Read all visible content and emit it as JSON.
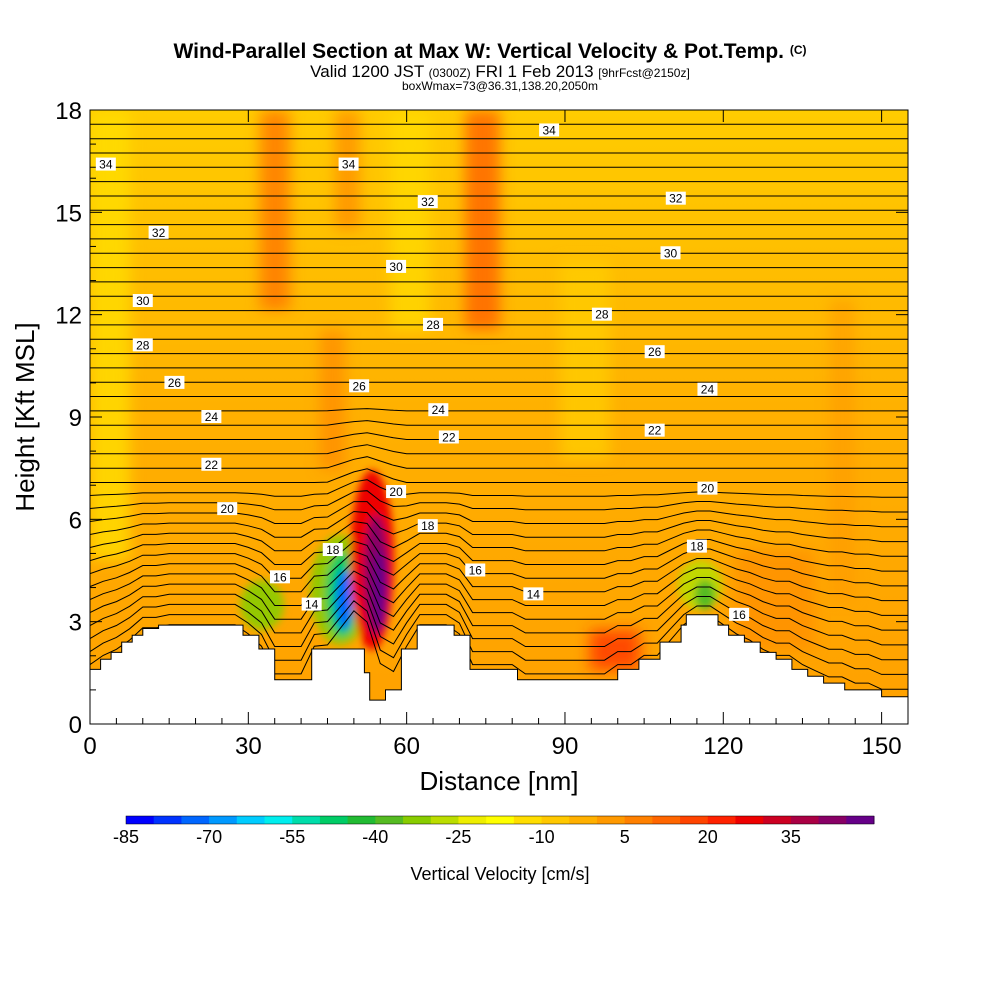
{
  "chart_data": {
    "type": "heatmap",
    "title": "Wind-Parallel Section at Max W: Vertical Velocity & Pot.Temp.",
    "title_mark": "(C)",
    "subtitle_valid": "Valid 1200 JST",
    "subtitle_utc": "(0300Z)",
    "subtitle_date": "FRI 1 Feb 2013",
    "subtitle_fcst": "[9hrFcst@2150z]",
    "subtitle_box": "boxWmax=73@36.31,138.20,2050m",
    "xlabel": "Distance [nm]",
    "ylabel": "Height [Kft MSL]",
    "xlim": [
      0,
      155
    ],
    "ylim": [
      0,
      18
    ],
    "xticks": [
      "0",
      "30",
      "60",
      "90",
      "120",
      "150"
    ],
    "yticks": [
      "0",
      "3",
      "6",
      "9",
      "12",
      "15",
      "18"
    ],
    "colorbar_label": "Vertical Velocity [cm/s]",
    "colorbar_ticks": [
      "-85",
      "-70",
      "-55",
      "-40",
      "-25",
      "-10",
      "5",
      "20",
      "35"
    ],
    "colorbar_colors": [
      "#0000ff",
      "#0033ff",
      "#0066ff",
      "#0099ff",
      "#00ccff",
      "#00eeee",
      "#00ddaa",
      "#00cc66",
      "#22bb33",
      "#55bb22",
      "#88cc00",
      "#bbdd00",
      "#eeee00",
      "#ffff00",
      "#ffdd00",
      "#ffc800",
      "#ffb000",
      "#ff9900",
      "#ff8000",
      "#ff6600",
      "#ff4400",
      "#ff2200",
      "#ee0000",
      "#cc0022",
      "#aa0044",
      "#880066",
      "#660088"
    ],
    "terrain_heights_kft": [
      [
        0,
        1.6
      ],
      [
        2,
        1.6
      ],
      [
        2,
        1.9
      ],
      [
        4,
        1.9
      ],
      [
        4,
        2.1
      ],
      [
        6,
        2.1
      ],
      [
        6,
        2.4
      ],
      [
        8,
        2.4
      ],
      [
        8,
        2.6
      ],
      [
        10,
        2.6
      ],
      [
        10,
        2.8
      ],
      [
        13,
        2.8
      ],
      [
        13,
        2.9
      ],
      [
        29,
        2.9
      ],
      [
        29,
        2.6
      ],
      [
        32,
        2.6
      ],
      [
        32,
        2.2
      ],
      [
        35,
        2.2
      ],
      [
        35,
        1.3
      ],
      [
        42,
        1.3
      ],
      [
        42,
        2.2
      ],
      [
        52,
        2.2
      ],
      [
        52,
        1.5
      ],
      [
        53,
        1.5
      ],
      [
        53,
        0.7
      ],
      [
        56,
        0.7
      ],
      [
        56,
        1.0
      ],
      [
        59,
        1.0
      ],
      [
        59,
        2.2
      ],
      [
        62,
        2.2
      ],
      [
        62,
        2.9
      ],
      [
        69,
        2.9
      ],
      [
        69,
        2.6
      ],
      [
        72,
        2.6
      ],
      [
        72,
        1.6
      ],
      [
        81,
        1.6
      ],
      [
        81,
        1.3
      ],
      [
        100,
        1.3
      ],
      [
        100,
        1.6
      ],
      [
        104,
        1.6
      ],
      [
        104,
        1.9
      ],
      [
        108,
        1.9
      ],
      [
        108,
        2.4
      ],
      [
        112,
        2.4
      ],
      [
        112,
        2.9
      ],
      [
        113,
        2.9
      ],
      [
        113,
        3.2
      ],
      [
        119,
        3.2
      ],
      [
        119,
        2.9
      ],
      [
        121,
        2.9
      ],
      [
        121,
        2.6
      ],
      [
        124,
        2.6
      ],
      [
        124,
        2.4
      ],
      [
        127,
        2.4
      ],
      [
        127,
        2.1
      ],
      [
        130,
        2.1
      ],
      [
        130,
        1.9
      ],
      [
        133,
        1.9
      ],
      [
        133,
        1.6
      ],
      [
        136,
        1.6
      ],
      [
        136,
        1.4
      ],
      [
        139,
        1.4
      ],
      [
        139,
        1.2
      ],
      [
        143,
        1.2
      ],
      [
        143,
        1.0
      ],
      [
        150,
        1.0
      ],
      [
        150,
        0.8
      ],
      [
        155,
        0.8
      ]
    ],
    "potential_temperature_contours": [
      {
        "value": "14",
        "label_at": [
          42,
          3.5
        ]
      },
      {
        "value": "14",
        "label_at": [
          84,
          3.8
        ]
      },
      {
        "value": "16",
        "label_at": [
          36,
          4.3
        ]
      },
      {
        "value": "16",
        "label_at": [
          73,
          4.5
        ]
      },
      {
        "value": "16",
        "label_at": [
          123,
          3.2
        ]
      },
      {
        "value": "18",
        "label_at": [
          46,
          5.1
        ]
      },
      {
        "value": "18",
        "label_at": [
          64,
          5.8
        ]
      },
      {
        "value": "18",
        "label_at": [
          115,
          5.2
        ]
      },
      {
        "value": "20",
        "label_at": [
          26,
          6.3
        ]
      },
      {
        "value": "20",
        "label_at": [
          58,
          6.8
        ]
      },
      {
        "value": "20",
        "label_at": [
          117,
          6.9
        ]
      },
      {
        "value": "22",
        "label_at": [
          23,
          7.6
        ]
      },
      {
        "value": "22",
        "label_at": [
          68,
          8.4
        ]
      },
      {
        "value": "22",
        "label_at": [
          107,
          8.6
        ]
      },
      {
        "value": "24",
        "label_at": [
          23,
          9.0
        ]
      },
      {
        "value": "24",
        "label_at": [
          66,
          9.2
        ]
      },
      {
        "value": "24",
        "label_at": [
          117,
          9.8
        ]
      },
      {
        "value": "26",
        "label_at": [
          16,
          10.0
        ]
      },
      {
        "value": "26",
        "label_at": [
          51,
          9.9
        ]
      },
      {
        "value": "26",
        "label_at": [
          107,
          10.9
        ]
      },
      {
        "value": "28",
        "label_at": [
          10,
          11.1
        ]
      },
      {
        "value": "28",
        "label_at": [
          65,
          11.7
        ]
      },
      {
        "value": "28",
        "label_at": [
          97,
          12.0
        ]
      },
      {
        "value": "30",
        "label_at": [
          10,
          12.4
        ]
      },
      {
        "value": "30",
        "label_at": [
          58,
          13.4
        ]
      },
      {
        "value": "30",
        "label_at": [
          110,
          13.8
        ]
      },
      {
        "value": "32",
        "label_at": [
          13,
          14.4
        ]
      },
      {
        "value": "32",
        "label_at": [
          64,
          15.3
        ]
      },
      {
        "value": "32",
        "label_at": [
          111,
          15.4
        ]
      },
      {
        "value": "34",
        "label_at": [
          3,
          16.4
        ]
      },
      {
        "value": "34",
        "label_at": [
          49,
          16.4
        ]
      },
      {
        "value": "34",
        "label_at": [
          87,
          17.4
        ]
      }
    ]
  }
}
